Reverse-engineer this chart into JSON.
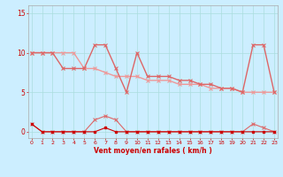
{
  "x": [
    0,
    1,
    2,
    3,
    4,
    5,
    6,
    7,
    8,
    9,
    10,
    11,
    12,
    13,
    14,
    15,
    16,
    17,
    18,
    19,
    20,
    21,
    22,
    23
  ],
  "line_speed": [
    1,
    0,
    0,
    0,
    0,
    0,
    0,
    0.5,
    0,
    0,
    0,
    0,
    0,
    0,
    0,
    0,
    0,
    0,
    0,
    0,
    0,
    0,
    0,
    0
  ],
  "line_gust": [
    1,
    0,
    0,
    0,
    0,
    0,
    1.5,
    2,
    1.5,
    0,
    0,
    0,
    0,
    0,
    0,
    0,
    0,
    0,
    0,
    0,
    0,
    1,
    0.5,
    0
  ],
  "line_rafales": [
    10,
    10,
    10,
    8,
    8,
    8,
    11,
    11,
    8,
    5,
    10,
    7,
    7,
    7,
    6.5,
    6.5,
    6,
    6,
    5.5,
    5.5,
    5,
    11,
    11,
    5
  ],
  "line_trend": [
    10,
    10,
    10,
    10,
    10,
    8,
    8,
    7.5,
    7,
    7,
    7,
    6.5,
    6.5,
    6.5,
    6,
    6,
    6,
    5.5,
    5.5,
    5.5,
    5,
    5,
    5,
    5
  ],
  "color_dark": "#cc0000",
  "color_mid": "#dd6666",
  "color_light": "#ee9999",
  "bg_color": "#cceeff",
  "grid_color": "#aadddd",
  "xlabel": "Vent moyen/en rafales ( km/h )",
  "ylabel_ticks": [
    0,
    5,
    10,
    15
  ],
  "xlim": [
    -0.3,
    23.3
  ],
  "ylim": [
    -0.8,
    16.0
  ]
}
